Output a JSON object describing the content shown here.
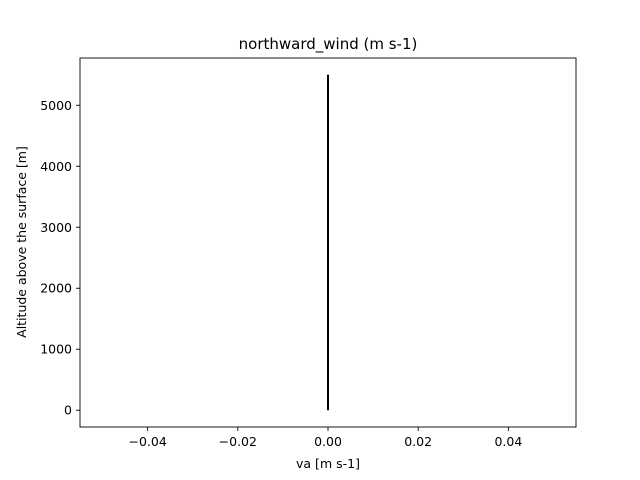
{
  "chart_data": {
    "type": "line",
    "title": "northward_wind (m s-1)",
    "xlabel": "va [m s-1]",
    "ylabel": "Altitude above the surface [m]",
    "xlim": [
      -0.055,
      0.055
    ],
    "ylim": [
      -275,
      5775
    ],
    "xticks": [
      -0.04,
      -0.02,
      0.0,
      0.02,
      0.04
    ],
    "xtick_labels": [
      "−0.04",
      "−0.02",
      "0.00",
      "0.02",
      "0.04"
    ],
    "yticks": [
      0,
      1000,
      2000,
      3000,
      4000,
      5000
    ],
    "ytick_labels": [
      "0",
      "1000",
      "2000",
      "3000",
      "4000",
      "5000"
    ],
    "grid": false,
    "series": [
      {
        "color": "#000000",
        "x": [
          0.0,
          0.0
        ],
        "y": [
          0,
          5500
        ]
      }
    ]
  }
}
